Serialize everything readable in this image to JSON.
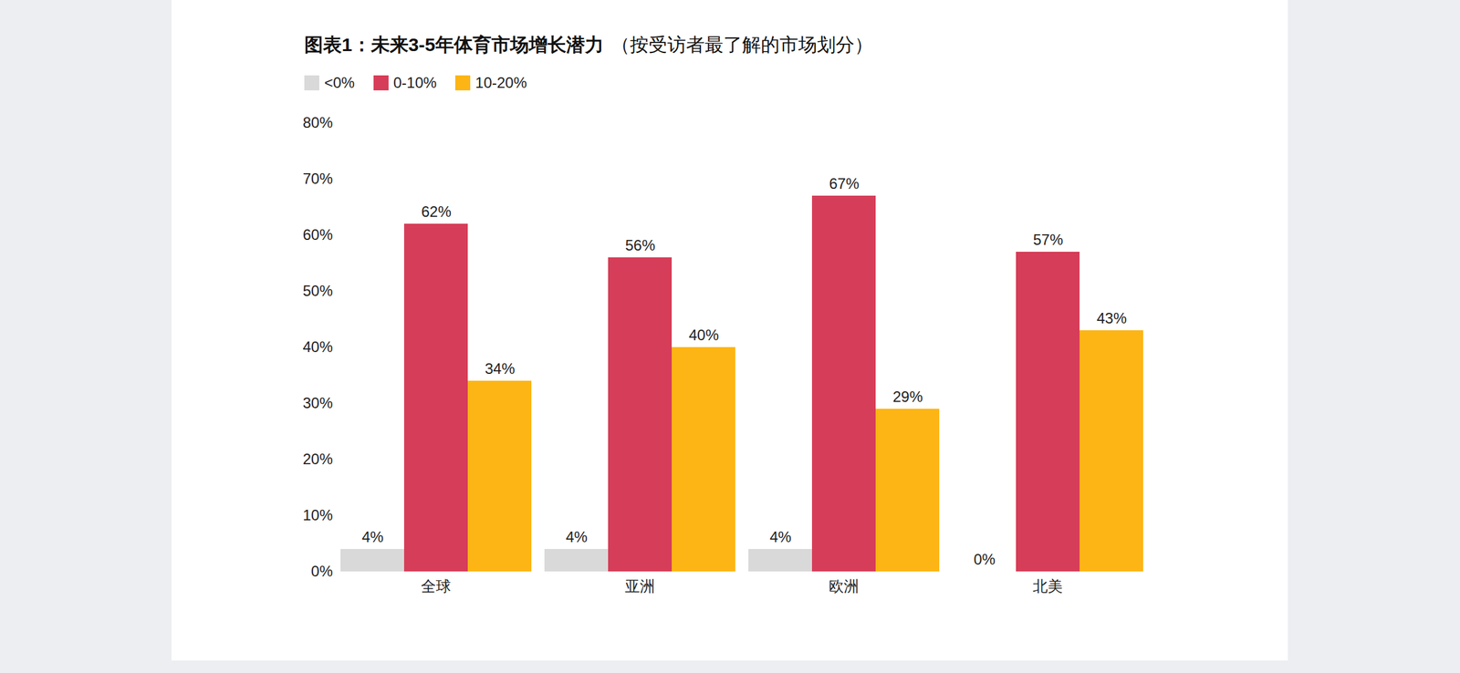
{
  "chart_data": {
    "type": "bar",
    "title": "图表1：未来3-5年体育市场增长潜力",
    "subtitle": "（按受访者最了解的市场划分）",
    "categories": [
      "全球",
      "亚洲",
      "欧洲",
      "北美"
    ],
    "series": [
      {
        "name": "<0%",
        "color": "#d9d9d9",
        "values": [
          4,
          4,
          4,
          0
        ],
        "value_labels": [
          "4%",
          "4%",
          "4%",
          "0%"
        ]
      },
      {
        "name": "0-10%",
        "color": "#d63d58",
        "values": [
          62,
          56,
          67,
          57
        ],
        "value_labels": [
          "62%",
          "56%",
          "67%",
          "57%"
        ]
      },
      {
        "name": "10-20%",
        "color": "#fdb515",
        "values": [
          34,
          40,
          29,
          43
        ],
        "value_labels": [
          "34%",
          "40%",
          "29%",
          "43%"
        ]
      }
    ],
    "ylim": [
      0,
      80
    ],
    "yticks": [
      {
        "value": 0,
        "label": "0%"
      },
      {
        "value": 10,
        "label": "10%"
      },
      {
        "value": 20,
        "label": "20%"
      },
      {
        "value": 30,
        "label": "30%"
      },
      {
        "value": 40,
        "label": "40%"
      },
      {
        "value": 50,
        "label": "50%"
      },
      {
        "value": 60,
        "label": "60%"
      },
      {
        "value": 70,
        "label": "70%"
      },
      {
        "value": 80,
        "label": "80%"
      }
    ],
    "grid": false,
    "legend": "top-left",
    "data_labels": true
  }
}
